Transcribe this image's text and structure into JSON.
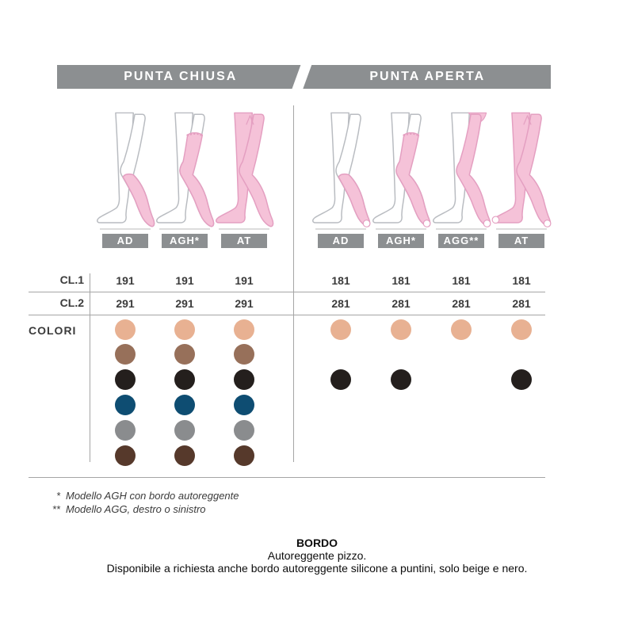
{
  "header": {
    "left": "PUNTA CHIUSA",
    "right": "PUNTA APERTA",
    "bar_color": "#8c8f91"
  },
  "row_labels": {
    "cl1": "CL.1",
    "cl2": "CL.2",
    "colori": "COLORI"
  },
  "palette": [
    {
      "name": "beige",
      "hex": "#e8b192"
    },
    {
      "name": "marrone",
      "hex": "#97705a"
    },
    {
      "name": "nero",
      "hex": "#241f1d"
    },
    {
      "name": "blu",
      "hex": "#0e4d72"
    },
    {
      "name": "grigio",
      "hex": "#8a8c8e"
    },
    {
      "name": "moro",
      "hex": "#56392b"
    }
  ],
  "columns": [
    {
      "section": "punta_chiusa",
      "label": "AD",
      "garment": "ad",
      "toe": "chiusa",
      "cl1": "191",
      "cl2": "291",
      "colors": [
        "beige",
        "marrone",
        "nero",
        "blu",
        "grigio",
        "moro"
      ]
    },
    {
      "section": "punta_chiusa",
      "label": "AGH*",
      "garment": "agh",
      "toe": "chiusa",
      "cl1": "191",
      "cl2": "291",
      "colors": [
        "beige",
        "marrone",
        "nero",
        "blu",
        "grigio",
        "moro"
      ]
    },
    {
      "section": "punta_chiusa",
      "label": "AT",
      "garment": "at",
      "toe": "chiusa",
      "cl1": "191",
      "cl2": "291",
      "colors": [
        "beige",
        "marrone",
        "nero",
        "blu",
        "grigio",
        "moro"
      ]
    },
    {
      "section": "punta_aperta",
      "label": "AD",
      "garment": "ad",
      "toe": "aperta",
      "cl1": "181",
      "cl2": "281",
      "colors": [
        "beige",
        "nero"
      ]
    },
    {
      "section": "punta_aperta",
      "label": "AGH*",
      "garment": "agh",
      "toe": "aperta",
      "cl1": "181",
      "cl2": "281",
      "colors": [
        "beige",
        "nero"
      ]
    },
    {
      "section": "punta_aperta",
      "label": "AGG**",
      "garment": "agg",
      "toe": "aperta",
      "cl1": "181",
      "cl2": "281",
      "colors": [
        "beige"
      ]
    },
    {
      "section": "punta_aperta",
      "label": "AT",
      "garment": "at",
      "toe": "aperta",
      "cl1": "181",
      "cl2": "281",
      "colors": [
        "beige",
        "nero"
      ]
    }
  ],
  "footnotes": [
    {
      "mark": "*",
      "text": "Modello AGH con bordo autoreggente"
    },
    {
      "mark": "**",
      "text": "Modello AGG, destro o sinistro"
    }
  ],
  "bordo": {
    "title": "BORDO",
    "line1": "Autoreggente pizzo.",
    "line2": "Disponibile a richiesta anche bordo autoreggente silicone a puntini, solo beige e nero."
  },
  "figure_colors": {
    "outline": "#b9bcc1",
    "stocking_fill": "#f5c2d8",
    "stocking_stroke": "#e49fc1"
  }
}
